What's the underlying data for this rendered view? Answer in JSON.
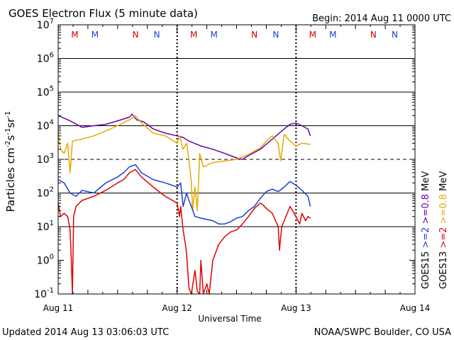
{
  "chart_data": {
    "type": "line",
    "title": "GOES Electron Flux (5 minute data)",
    "begin_label": "Begin: 2014 Aug 11 0000 UTC",
    "xlabel": "Universal Time",
    "ylabel_parts": [
      "Particles cm",
      "-2",
      "s",
      "-1",
      "sr",
      "-1"
    ],
    "x_unit": "days since 2014 Aug 11 0000 UTC",
    "xlim": [
      0,
      3
    ],
    "x_ticks": [
      {
        "value": 0,
        "label": "Aug 11"
      },
      {
        "value": 1,
        "label": "Aug 12"
      },
      {
        "value": 2,
        "label": "Aug 13"
      },
      {
        "value": 3,
        "label": "Aug 14"
      }
    ],
    "y_scale": "log",
    "ylim": [
      0.1,
      10000000
    ],
    "y_ticks": [
      {
        "exp": -1,
        "base": "10",
        "sup": "-1"
      },
      {
        "exp": 0,
        "base": "10",
        "sup": "0"
      },
      {
        "exp": 1,
        "base": "10",
        "sup": "1"
      },
      {
        "exp": 2,
        "base": "10",
        "sup": "2"
      },
      {
        "exp": 3,
        "base": "10",
        "sup": "3"
      },
      {
        "exp": 4,
        "base": "10",
        "sup": "4"
      },
      {
        "exp": 5,
        "base": "10",
        "sup": "5"
      },
      {
        "exp": 6,
        "base": "10",
        "sup": "6"
      },
      {
        "exp": 7,
        "base": "10",
        "sup": "7"
      }
    ],
    "grid_exps": [
      1,
      2,
      4,
      5,
      6
    ],
    "threshold": {
      "exp": 3,
      "style": "dashed"
    },
    "day_boundaries": [
      1,
      2
    ],
    "markers": [
      {
        "day": 0.14,
        "label": "M",
        "color": "#d00000"
      },
      {
        "day": 0.31,
        "label": "M",
        "color": "#1a3fd0"
      },
      {
        "day": 0.65,
        "label": "N",
        "color": "#d00000"
      },
      {
        "day": 0.83,
        "label": "N",
        "color": "#1a3fd0"
      },
      {
        "day": 1.14,
        "label": "M",
        "color": "#d00000"
      },
      {
        "day": 1.31,
        "label": "M",
        "color": "#1a3fd0"
      },
      {
        "day": 1.65,
        "label": "N",
        "color": "#d00000"
      },
      {
        "day": 1.83,
        "label": "N",
        "color": "#1a3fd0"
      },
      {
        "day": 2.14,
        "label": "M",
        "color": "#d00000"
      },
      {
        "day": 2.31,
        "label": "M",
        "color": "#1a3fd0"
      },
      {
        "day": 2.65,
        "label": "N",
        "color": "#d00000"
      },
      {
        "day": 2.83,
        "label": "N",
        "color": "#1a3fd0"
      }
    ],
    "series": [
      {
        "name": "GOES15 >=0.8 MeV",
        "color": "#6a00a8",
        "points": [
          [
            0,
            20000
          ],
          [
            0.1,
            14000
          ],
          [
            0.2,
            9000
          ],
          [
            0.3,
            10000
          ],
          [
            0.4,
            11000
          ],
          [
            0.5,
            14000
          ],
          [
            0.6,
            18000
          ],
          [
            0.62,
            22000
          ],
          [
            0.66,
            15000
          ],
          [
            0.72,
            13000
          ],
          [
            0.8,
            8000
          ],
          [
            0.9,
            6000
          ],
          [
            1.0,
            5000
          ],
          [
            1.05,
            4500
          ],
          [
            1.1,
            3500
          ],
          [
            1.2,
            2500
          ],
          [
            1.3,
            2000
          ],
          [
            1.4,
            1500
          ],
          [
            1.5,
            1100
          ],
          [
            1.55,
            1000
          ],
          [
            1.6,
            1300
          ],
          [
            1.7,
            2000
          ],
          [
            1.8,
            4000
          ],
          [
            1.9,
            8000
          ],
          [
            1.95,
            11000
          ],
          [
            2.0,
            12000
          ],
          [
            2.05,
            10000
          ],
          [
            2.1,
            8000
          ],
          [
            2.12,
            5000
          ]
        ]
      },
      {
        "name": "GOES13 >=0.8 MeV",
        "color": "#e8a800",
        "points": [
          [
            0,
            6000
          ],
          [
            0.02,
            2000
          ],
          [
            0.05,
            1500
          ],
          [
            0.08,
            3000
          ],
          [
            0.1,
            400
          ],
          [
            0.12,
            3500
          ],
          [
            0.2,
            4000
          ],
          [
            0.3,
            5000
          ],
          [
            0.4,
            7000
          ],
          [
            0.5,
            10000
          ],
          [
            0.6,
            15000
          ],
          [
            0.65,
            20000
          ],
          [
            0.7,
            12000
          ],
          [
            0.8,
            6000
          ],
          [
            0.9,
            5000
          ],
          [
            1.0,
            3000
          ],
          [
            1.02,
            5000
          ],
          [
            1.05,
            2000
          ],
          [
            1.08,
            3000
          ],
          [
            1.1,
            900
          ],
          [
            1.12,
            200
          ],
          [
            1.13,
            30
          ],
          [
            1.15,
            150
          ],
          [
            1.17,
            30
          ],
          [
            1.19,
            1500
          ],
          [
            1.22,
            600
          ],
          [
            1.3,
            800
          ],
          [
            1.4,
            900
          ],
          [
            1.5,
            1000
          ],
          [
            1.6,
            1400
          ],
          [
            1.7,
            2200
          ],
          [
            1.75,
            3500
          ],
          [
            1.8,
            5000
          ],
          [
            1.85,
            3000
          ],
          [
            1.87,
            900
          ],
          [
            1.9,
            5500
          ],
          [
            1.95,
            3500
          ],
          [
            2.0,
            2500
          ],
          [
            2.05,
            3000
          ],
          [
            2.12,
            2800
          ]
        ]
      },
      {
        "name": "GOES15 >=2 MeV",
        "color": "#1a3fd0",
        "points": [
          [
            0,
            250
          ],
          [
            0.05,
            200
          ],
          [
            0.1,
            100
          ],
          [
            0.15,
            80
          ],
          [
            0.2,
            120
          ],
          [
            0.3,
            100
          ],
          [
            0.4,
            200
          ],
          [
            0.5,
            300
          ],
          [
            0.55,
            400
          ],
          [
            0.6,
            600
          ],
          [
            0.65,
            700
          ],
          [
            0.7,
            400
          ],
          [
            0.8,
            250
          ],
          [
            0.9,
            200
          ],
          [
            1.0,
            150
          ],
          [
            1.03,
            200
          ],
          [
            1.05,
            40
          ],
          [
            1.08,
            100
          ],
          [
            1.1,
            60
          ],
          [
            1.12,
            40
          ],
          [
            1.15,
            20
          ],
          [
            1.2,
            18
          ],
          [
            1.3,
            15
          ],
          [
            1.35,
            12
          ],
          [
            1.4,
            12
          ],
          [
            1.45,
            14
          ],
          [
            1.5,
            18
          ],
          [
            1.55,
            20
          ],
          [
            1.6,
            30
          ],
          [
            1.65,
            40
          ],
          [
            1.7,
            70
          ],
          [
            1.75,
            110
          ],
          [
            1.8,
            130
          ],
          [
            1.85,
            110
          ],
          [
            1.9,
            150
          ],
          [
            1.95,
            220
          ],
          [
            2.0,
            170
          ],
          [
            2.05,
            120
          ],
          [
            2.1,
            80
          ],
          [
            2.12,
            40
          ]
        ]
      },
      {
        "name": "GOES13 >=2 MeV",
        "color": "#e00000",
        "points": [
          [
            0,
            50
          ],
          [
            0.02,
            20
          ],
          [
            0.05,
            25
          ],
          [
            0.08,
            20
          ],
          [
            0.1,
            8
          ],
          [
            0.11,
            1.2
          ],
          [
            0.12,
            0.1
          ],
          [
            0.13,
            20
          ],
          [
            0.15,
            40
          ],
          [
            0.2,
            60
          ],
          [
            0.3,
            80
          ],
          [
            0.4,
            120
          ],
          [
            0.5,
            200
          ],
          [
            0.55,
            250
          ],
          [
            0.6,
            400
          ],
          [
            0.65,
            500
          ],
          [
            0.7,
            300
          ],
          [
            0.8,
            150
          ],
          [
            0.9,
            80
          ],
          [
            1.0,
            50
          ],
          [
            1.02,
            20
          ],
          [
            1.03,
            40
          ],
          [
            1.05,
            8
          ],
          [
            1.07,
            3
          ],
          [
            1.08,
            1.5
          ],
          [
            1.1,
            0.15
          ],
          [
            1.12,
            0.1
          ],
          [
            1.15,
            0.5
          ],
          [
            1.17,
            0.12
          ],
          [
            1.19,
            0.1
          ],
          [
            1.2,
            1
          ],
          [
            1.22,
            0.1
          ],
          [
            1.25,
            0.2
          ],
          [
            1.27,
            0.1
          ],
          [
            1.3,
            1
          ],
          [
            1.35,
            3
          ],
          [
            1.4,
            5
          ],
          [
            1.45,
            7
          ],
          [
            1.5,
            8
          ],
          [
            1.55,
            12
          ],
          [
            1.6,
            20
          ],
          [
            1.65,
            35
          ],
          [
            1.7,
            50
          ],
          [
            1.72,
            45
          ],
          [
            1.75,
            35
          ],
          [
            1.8,
            25
          ],
          [
            1.85,
            10
          ],
          [
            1.86,
            2
          ],
          [
            1.88,
            10
          ],
          [
            1.9,
            15
          ],
          [
            1.95,
            40
          ],
          [
            2.0,
            20
          ],
          [
            2.03,
            12
          ],
          [
            2.05,
            25
          ],
          [
            2.08,
            15
          ],
          [
            2.1,
            20
          ],
          [
            2.12,
            18
          ]
        ]
      }
    ],
    "legend": {
      "instruments": [
        {
          "label": "GOES15",
          "color": "#000000"
        },
        {
          "label": "GOES13",
          "color": "#000000"
        }
      ],
      "energies": [
        {
          "label": ">=2",
          "color": "#1a3fd0"
        },
        {
          "label": ">=2",
          "color": "#e00000"
        },
        {
          "label": ">=0.8",
          "color": "#6a00a8"
        },
        {
          "label": ">=0.8",
          "color": "#e8a800"
        }
      ],
      "unit": "MeV"
    }
  },
  "footer": {
    "updated": "Updated 2014 Aug 13 03:06:03 UTC",
    "credit": "NOAA/SWPC Boulder, CO USA"
  }
}
